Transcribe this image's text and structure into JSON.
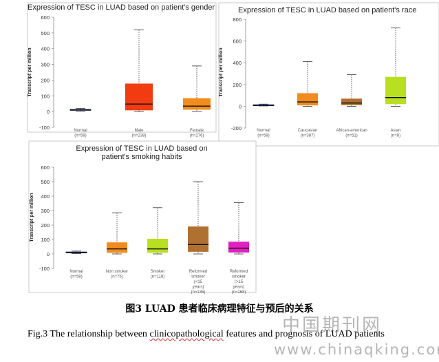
{
  "chart_data": [
    {
      "type": "boxplot",
      "title": "Expression of TESC in LUAD based on patient's gender",
      "ylabel": "Transcript per million",
      "ylim": [
        -100,
        600
      ],
      "yticks": [
        -100,
        0,
        100,
        200,
        300,
        400,
        500,
        600
      ],
      "categories": [
        {
          "name": "Normal",
          "n": "(n=59)",
          "color": "#1e2a6e",
          "min": 3,
          "q1": 8,
          "median": 11,
          "q3": 14,
          "max": 20
        },
        {
          "name": "Male",
          "n": "(n=238)",
          "color": "#f03c10",
          "min": 0,
          "q1": 8,
          "median": 48,
          "q3": 178,
          "max": 520
        },
        {
          "name": "Female",
          "n": "(n=276)",
          "color": "#f28c1e",
          "min": 0,
          "q1": 12,
          "median": 35,
          "q3": 85,
          "max": 290
        }
      ]
    },
    {
      "type": "boxplot",
      "title": "Expression of TESC in LUAD based on patient's race",
      "ylabel": "Transcript per million",
      "ylim": [
        -200,
        800
      ],
      "yticks": [
        -200,
        0,
        200,
        400,
        600,
        800
      ],
      "categories": [
        {
          "name": "Normal",
          "n": "(n=59)",
          "color": "#1e2a6e",
          "min": 3,
          "q1": 8,
          "median": 11,
          "q3": 14,
          "max": 20
        },
        {
          "name": "Caucasian",
          "n": "(n=387)",
          "color": "#f28c1e",
          "min": 0,
          "q1": 8,
          "median": 40,
          "q3": 120,
          "max": 410
        },
        {
          "name": "African-american",
          "n": "(n=51)",
          "color": "#b07030",
          "min": 0,
          "q1": 10,
          "median": 30,
          "q3": 70,
          "max": 290
        },
        {
          "name": "Asian",
          "n": "(n=8)",
          "color": "#b8e020",
          "min": 0,
          "q1": 20,
          "median": 80,
          "q3": 270,
          "max": 720
        }
      ]
    },
    {
      "type": "boxplot",
      "title": "Expression of TESC in LUAD based on patient's smoking habits",
      "ylabel": "Transcript per million",
      "ylim": [
        -100,
        600
      ],
      "yticks": [
        -100,
        0,
        100,
        200,
        300,
        400,
        500,
        600
      ],
      "categories": [
        {
          "name": "Normal",
          "n": "(n=59)",
          "color": "#1e2a6e",
          "min": 3,
          "q1": 8,
          "median": 11,
          "q3": 14,
          "max": 20
        },
        {
          "name": "Non smoker",
          "n": "(n=75)",
          "color": "#f28c1e",
          "min": 0,
          "q1": 8,
          "median": 35,
          "q3": 80,
          "max": 285
        },
        {
          "name": "Smoker",
          "n": "(n=118)",
          "color": "#b8e020",
          "min": 0,
          "q1": 8,
          "median": 35,
          "q3": 105,
          "max": 320
        },
        {
          "name": "Reformed smoker (<15 years)",
          "n": "(n=135)",
          "color": "#b07030",
          "min": 0,
          "q1": 15,
          "median": 65,
          "q3": 190,
          "max": 500
        },
        {
          "name": "Reformed smoker (>15 years)",
          "n": "(n=168)",
          "color": "#e020c0",
          "min": 0,
          "q1": 10,
          "median": 40,
          "q3": 85,
          "max": 355
        }
      ]
    }
  ],
  "caption": {
    "cn": "图3   LUAD 患者临床病理特征与预后的关系",
    "en_prefix": "Fig.3 The relationship between ",
    "en_underlined": "clinicopathological",
    "en_suffix": " features and prognosis of LUAD patients"
  },
  "watermark": {
    "cn": "中国期刊网",
    "url": "www.chinaqking.com"
  }
}
